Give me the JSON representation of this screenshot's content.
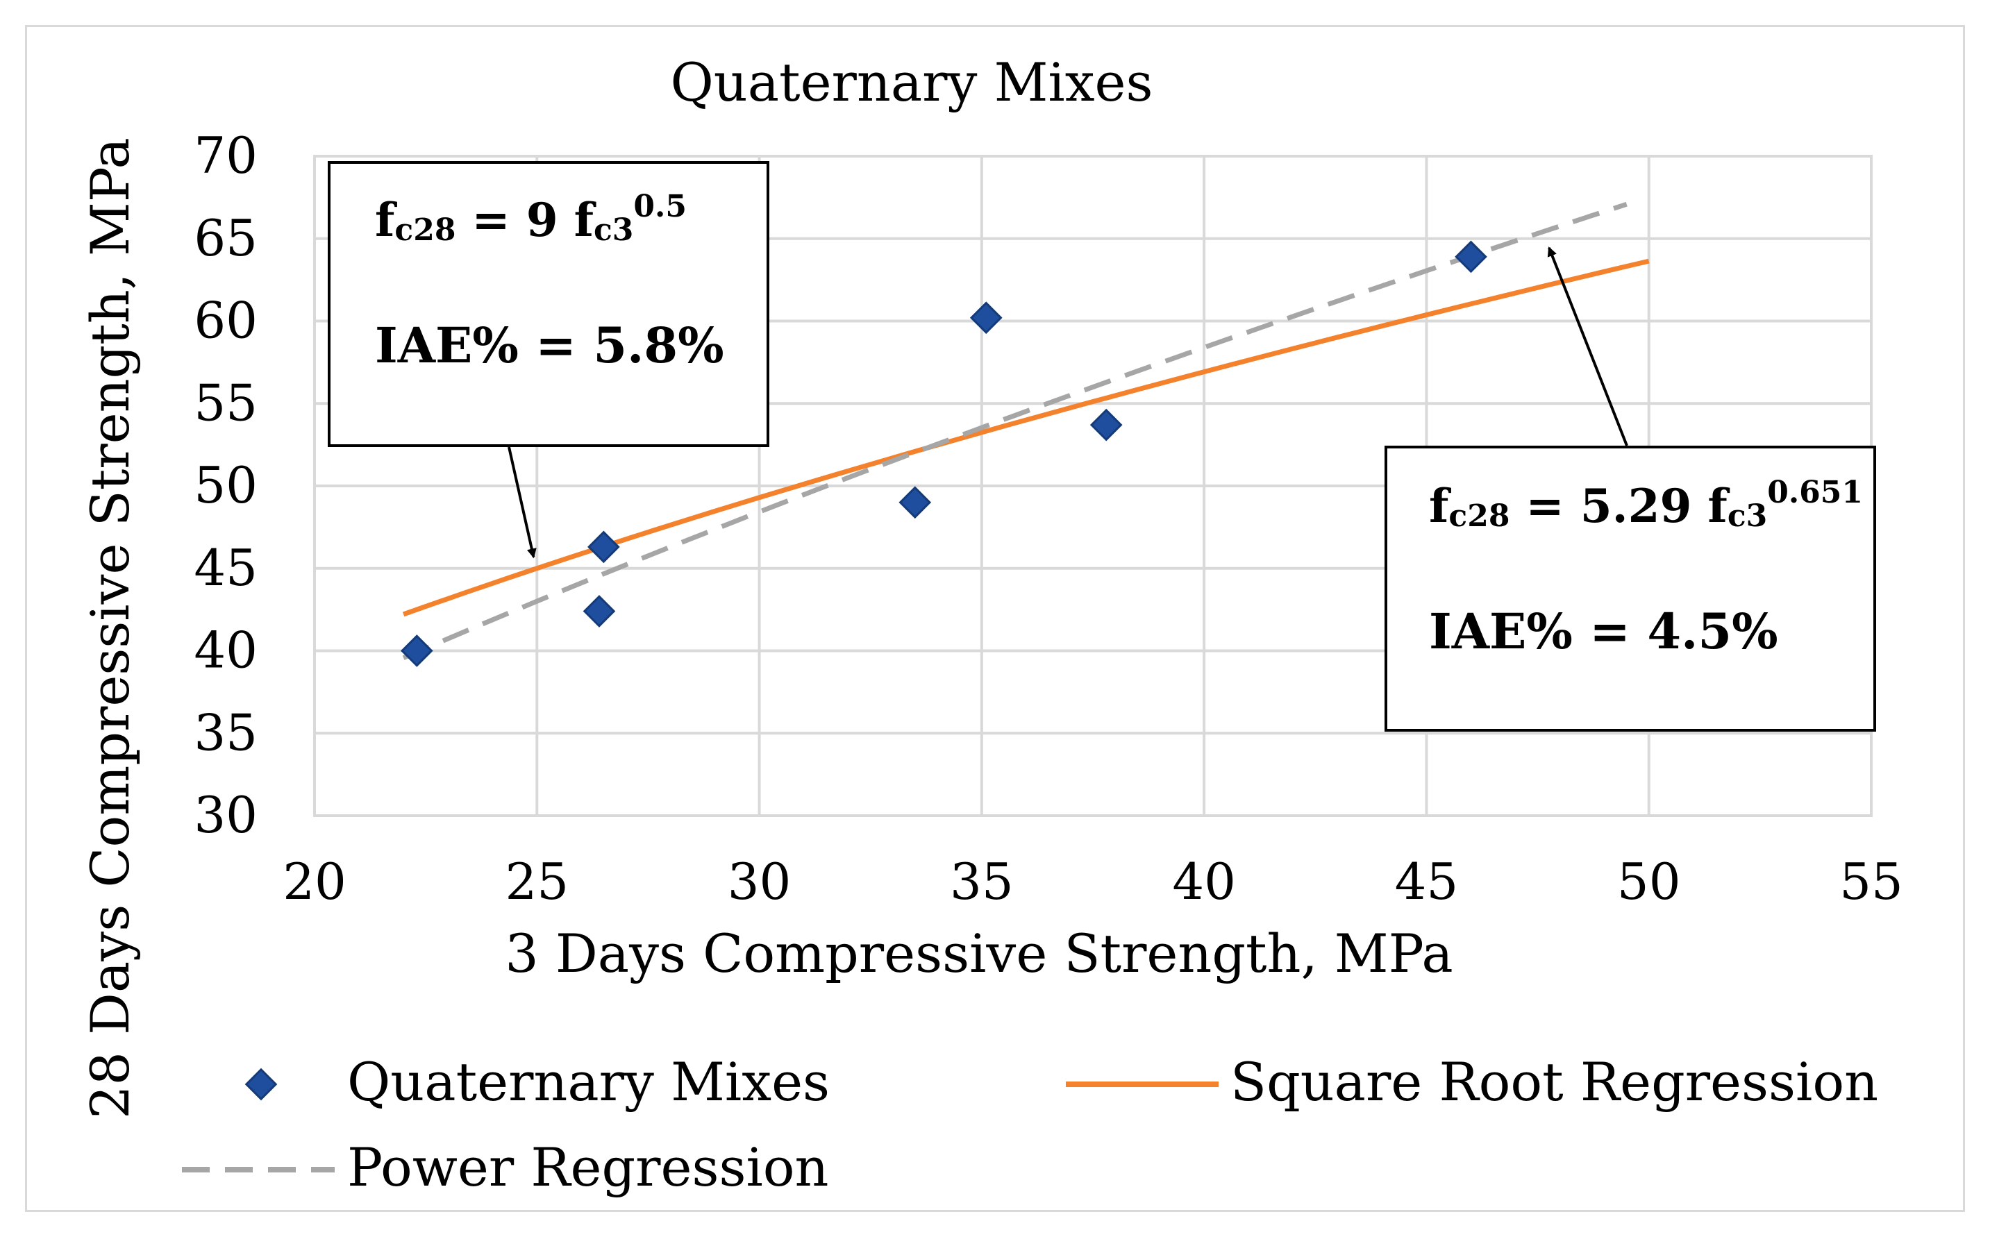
{
  "chart_data": {
    "type": "scatter",
    "title": "Quaternary Mixes",
    "xlabel": "3 Days Compressive Strength, MPa",
    "ylabel": "28 Days Compressive Strength, MPa",
    "xlim": [
      20,
      55
    ],
    "ylim": [
      30,
      70
    ],
    "xticks": [
      20,
      25,
      30,
      35,
      40,
      45,
      50,
      55
    ],
    "yticks": [
      30,
      35,
      40,
      45,
      50,
      55,
      60,
      65,
      70
    ],
    "grid": true,
    "series": [
      {
        "name": "Quaternary Mixes",
        "kind": "scatter",
        "color": "#1f4e9e",
        "points": [
          {
            "x": 22.3,
            "y": 40.0
          },
          {
            "x": 26.4,
            "y": 42.4
          },
          {
            "x": 26.5,
            "y": 46.3
          },
          {
            "x": 33.5,
            "y": 49.0
          },
          {
            "x": 35.1,
            "y": 60.2
          },
          {
            "x": 37.8,
            "y": 53.7
          },
          {
            "x": 46.0,
            "y": 63.9
          }
        ]
      },
      {
        "name": "Square Root Regression",
        "kind": "line",
        "color": "#f4812b",
        "equation": {
          "a": 9,
          "b": 0.5
        },
        "x_range": [
          22,
          50
        ]
      },
      {
        "name": "Power Regression",
        "kind": "dashed",
        "color": "#a6a6a6",
        "equation": {
          "a": 5.29,
          "b": 0.651
        },
        "x_range": [
          22,
          49.5
        ]
      }
    ],
    "legend": {
      "placement": "bottom",
      "items": [
        "Quaternary Mixes",
        "Square Root Regression",
        "Power Regression"
      ]
    },
    "annotations": [
      {
        "position": "top-left",
        "eq_base": "f",
        "eq_lhs_sub": "c28",
        "eq_mid": " = 9 f",
        "eq_rhs_sub": "c3",
        "eq_exp": "0.5",
        "iae": "IAE% = 5.8%",
        "arrow_target": {
          "x": 24.8,
          "y": 45.1
        }
      },
      {
        "position": "bottom-right",
        "eq_base": "f",
        "eq_lhs_sub": "c28",
        "eq_mid": " = 5.29 f",
        "eq_rhs_sub": "c3",
        "eq_exp": "0.651",
        "iae": "IAE% = 4.5%",
        "arrow_target": {
          "x": 47.6,
          "y": 65.2
        }
      }
    ]
  }
}
